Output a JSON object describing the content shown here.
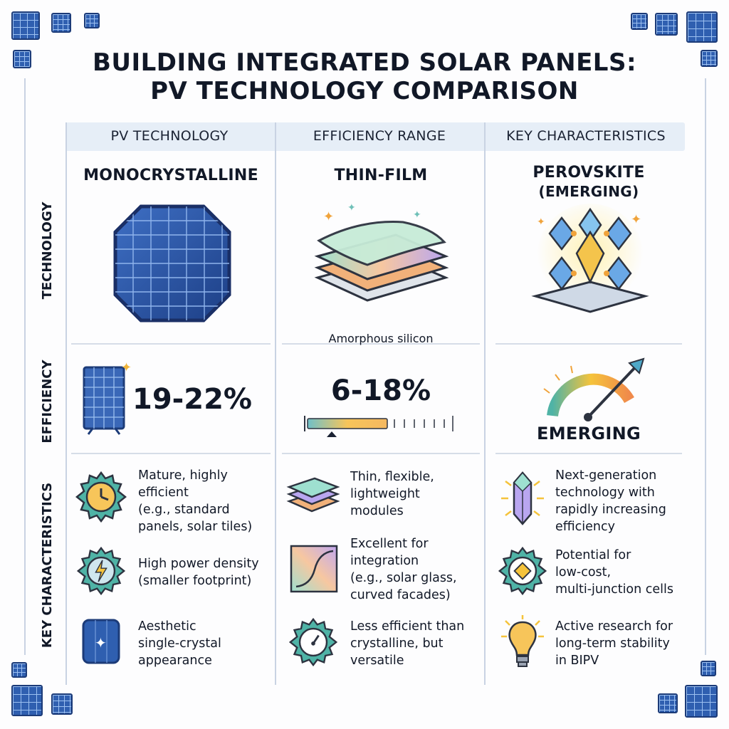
{
  "title": {
    "line1": "BUILDING INTEGRATED SOLAR PANELS:",
    "line2": "PV TECHNOLOGY COMPARISON"
  },
  "columns": [
    {
      "label": "PV TECHNOLOGY"
    },
    {
      "label": "EFFICIENCY RANGE"
    },
    {
      "label": "KEY CHARACTERISTICS"
    }
  ],
  "rows": [
    {
      "label": "TECHNOLOGY"
    },
    {
      "label": "EFFICIENCY"
    },
    {
      "label": "KEY CHARACTERISTICS"
    }
  ],
  "technologies": [
    {
      "name": "MONOCRYSTALLINE",
      "icon": "octagonal-mono-cell-icon",
      "efficiency": "19-22%",
      "efficiency_icon": "solar-panel-sparkle-icon",
      "characteristics": [
        {
          "icon": "gear-clock-icon",
          "text": [
            "Mature, highly",
            "efficient",
            "(e.g., standard",
            "panels, solar tiles)"
          ]
        },
        {
          "icon": "gear-lightning-icon",
          "text": [
            "High power density",
            "(smaller footprint)"
          ]
        },
        {
          "icon": "single-crystal-cell-icon",
          "text": [
            "Aesthetic",
            "single-crystal",
            "appearance"
          ]
        }
      ]
    },
    {
      "name": "THIN-FILM",
      "icon": "stacked-film-layers-icon",
      "caption": "Amorphous silicon",
      "efficiency": "6-18%",
      "efficiency_icon": "efficiency-scale-bar-icon",
      "characteristics": [
        {
          "icon": "thin-layers-icon",
          "text": [
            "Thin, flexible,",
            "lightweight",
            "modules"
          ]
        },
        {
          "icon": "curved-glass-icon",
          "text": [
            "Excellent for",
            "integration",
            "(e.g., solar glass,",
            "curved facades)"
          ]
        },
        {
          "icon": "gear-gauge-icon",
          "text": [
            "Less efficient than",
            "crystalline, but",
            "versatile"
          ]
        }
      ]
    },
    {
      "name_line1": "PEROVSKITE",
      "name_line2": "(EMERGING)",
      "icon": "perovskite-crystal-lattice-icon",
      "efficiency": "EMERGING",
      "efficiency_icon": "rising-gauge-arrow-icon",
      "characteristics": [
        {
          "icon": "glowing-crystal-icon",
          "text": [
            "Next-generation",
            "technology with",
            "rapidly increasing",
            "efficiency"
          ]
        },
        {
          "icon": "gear-diamond-icon",
          "text": [
            "Potential for",
            "low-cost,",
            "multi-junction cells"
          ]
        },
        {
          "icon": "lightbulb-icon",
          "text": [
            "Active research for",
            "long-term stability",
            "in BIPV"
          ]
        }
      ]
    }
  ],
  "colors": {
    "panel_blue": "#2f5fb0",
    "panel_dark": "#1c3b78",
    "header_band": "#e6eef7",
    "accent_yellow": "#f5c33b",
    "accent_teal": "#4fb3a6"
  }
}
